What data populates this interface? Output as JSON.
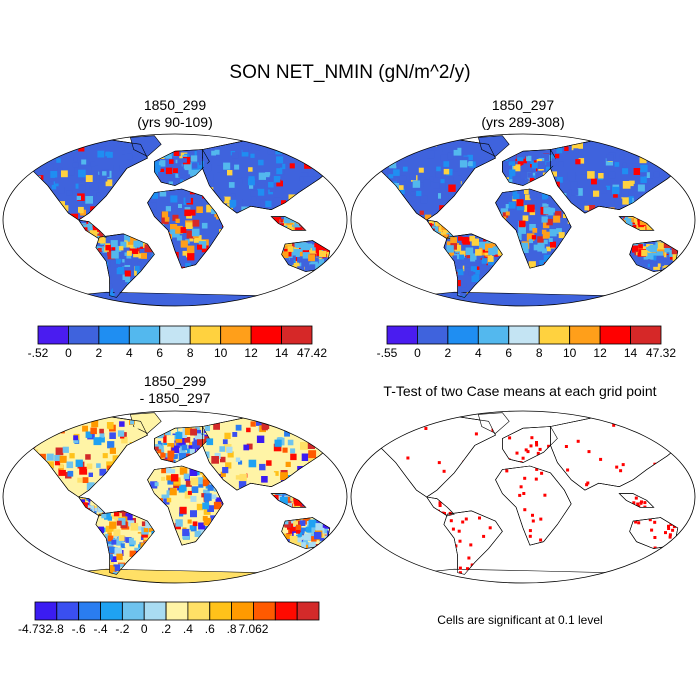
{
  "title": "SON NET_NMIN (gN/m^2/y)",
  "colors": {
    "ocean": "#ffffff",
    "outline": "#000000",
    "significant": "#ff0000"
  },
  "panels": [
    {
      "id": "p1",
      "title_line1": "1850_299",
      "title_line2": "(yrs 90-109)",
      "type": "field",
      "palette": [
        "#4a1cf0",
        "#3f63dd",
        "#1f8ef2",
        "#53b8ee",
        "#c4e4f3",
        "#ffd23f",
        "#ff9f1a",
        "#ff0000",
        "#d62828"
      ],
      "colorbar_labels": [
        "-.52",
        "0",
        "2",
        "4",
        "6",
        "8",
        "10",
        "12",
        "14",
        "47.42"
      ]
    },
    {
      "id": "p2",
      "title_line1": "1850_297",
      "title_line2": "(yrs 289-308)",
      "type": "field",
      "palette": [
        "#4a1cf0",
        "#3f63dd",
        "#1f8ef2",
        "#53b8ee",
        "#c4e4f3",
        "#ffd23f",
        "#ff9f1a",
        "#ff0000",
        "#d62828"
      ],
      "colorbar_labels": [
        "-.55",
        "0",
        "2",
        "4",
        "6",
        "8",
        "10",
        "12",
        "14",
        "47.32"
      ]
    },
    {
      "id": "p3",
      "title_line1": "1850_299",
      "title_line2": "- 1850_297",
      "type": "difference",
      "palette": [
        "#3b1cf2",
        "#3a4ff0",
        "#2a7df0",
        "#1fa2f2",
        "#6fc3ee",
        "#a9dcf2",
        "#fff4a6",
        "#ffe066",
        "#ffc21a",
        "#ff9a00",
        "#ff5a00",
        "#ff0a00",
        "#d32a2a"
      ],
      "colorbar_labels": [
        "-4.732",
        "-.8",
        "-.6",
        "-.4",
        "-.2",
        "0",
        ".2",
        ".4",
        ".6",
        ".8",
        "7.062"
      ]
    },
    {
      "id": "p4",
      "title_line1": "T-Test of two Case means at each grid point",
      "title_line2": "",
      "type": "ttest",
      "note": "Cells are significant at 0.1 level"
    }
  ]
}
